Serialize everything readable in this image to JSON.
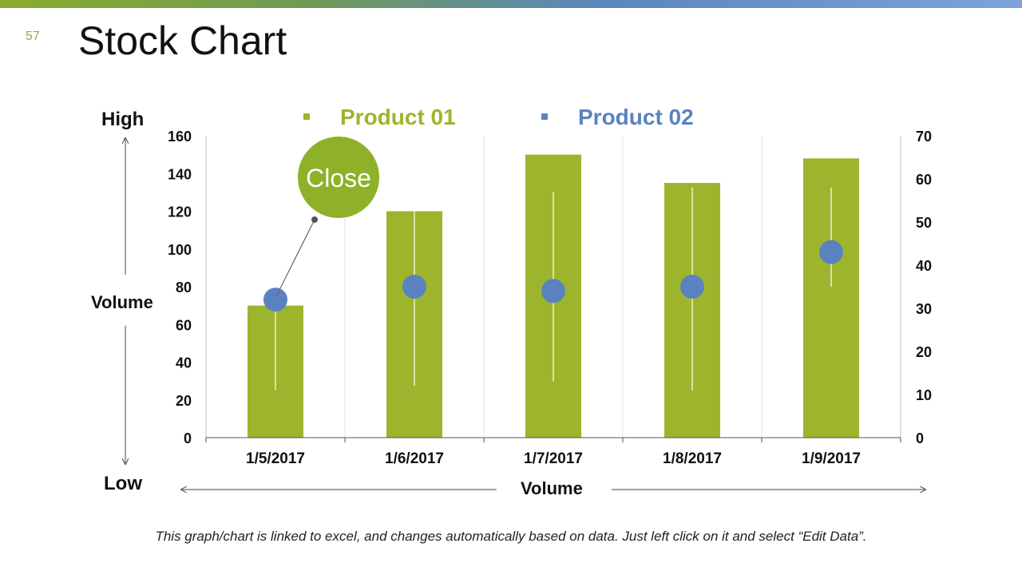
{
  "slide": {
    "number": "57",
    "title": "Stock Chart"
  },
  "side_labels": {
    "high": "High",
    "low": "Low",
    "volume_left": "Volume",
    "volume_bottom": "Volume"
  },
  "callout": {
    "label": "Close"
  },
  "footer": {
    "note": "This graph/chart is linked to excel, and changes automatically based on data. Just left click on it and select “Edit Data”."
  },
  "colors": {
    "product01": "#9db52c",
    "product02": "#5a82c0",
    "topbar_start": "#8aab2c",
    "topbar_end": "#7ea2d6"
  },
  "chart_data": {
    "type": "bar",
    "categories": [
      "1/5/2017",
      "1/6/2017",
      "1/7/2017",
      "1/8/2017",
      "1/9/2017"
    ],
    "y_left": {
      "ticks": [
        "0",
        "20",
        "40",
        "60",
        "80",
        "100",
        "120",
        "140",
        "160"
      ],
      "ylim": [
        0,
        160
      ]
    },
    "y_right": {
      "ticks": [
        "0",
        "10",
        "20",
        "30",
        "40",
        "50",
        "60",
        "70"
      ],
      "ylim": [
        0,
        70
      ]
    },
    "series": [
      {
        "name": "Product 01",
        "axis": "left",
        "kind": "volume-bar",
        "values": [
          70,
          120,
          150,
          135,
          148
        ]
      },
      {
        "name": "Product 02",
        "axis": "right",
        "kind": "high-low-close",
        "high": [
          30,
          55,
          57,
          58,
          58
        ],
        "low": [
          11,
          12,
          13,
          11,
          35
        ],
        "close": [
          32,
          35,
          34,
          35,
          43
        ]
      }
    ],
    "legend_position": "top",
    "grid": "vertical"
  }
}
